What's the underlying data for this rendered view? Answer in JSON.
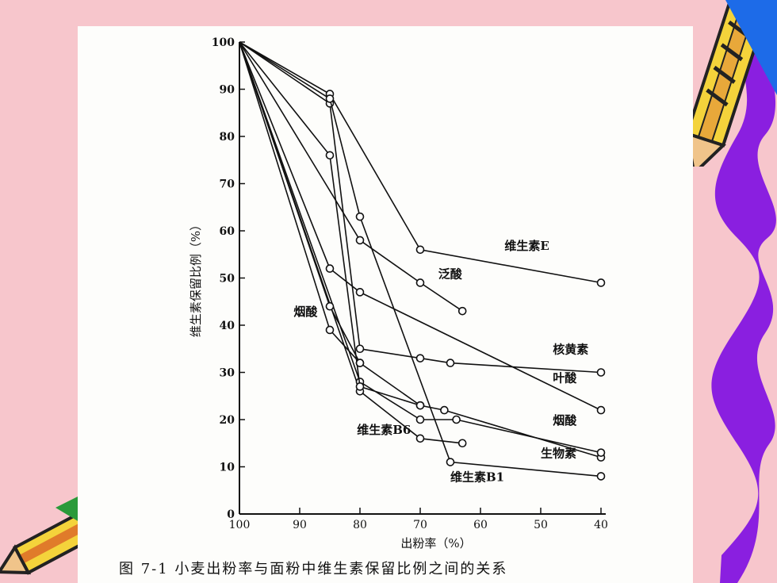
{
  "chart_data": {
    "type": "line",
    "xlabel": "出粉率（%）",
    "ylabel": "维生素保留比例（%）",
    "x_ticks": [
      "100",
      "90",
      "80",
      "70",
      "60",
      "50",
      "40"
    ],
    "y_ticks": [
      "0",
      "10",
      "20",
      "30",
      "40",
      "50",
      "60",
      "70",
      "80",
      "90",
      "100"
    ],
    "xlim": [
      100,
      40
    ],
    "ylim": [
      0,
      100
    ],
    "grid": false,
    "series": [
      {
        "name": "维生素E",
        "x": [
          100,
          85,
          70,
          40
        ],
        "y": [
          100,
          89,
          56,
          49
        ]
      },
      {
        "name": "泛酸",
        "x": [
          100,
          80,
          70,
          63
        ],
        "y": [
          100,
          58,
          49,
          43
        ]
      },
      {
        "name": "核黄素",
        "x": [
          100,
          85,
          80,
          70,
          65,
          40
        ],
        "y": [
          100,
          87,
          35,
          33,
          32,
          30
        ]
      },
      {
        "name": "叶酸",
        "x": [
          100,
          85,
          80,
          40
        ],
        "y": [
          100,
          52,
          47,
          22
        ]
      },
      {
        "name": "烟酸",
        "x": [
          100,
          85,
          80,
          70,
          66,
          40
        ],
        "y": [
          100,
          39,
          32,
          23,
          22,
          12
        ]
      },
      {
        "name": "维生素B6",
        "x": [
          100,
          80,
          70,
          63
        ],
        "y": [
          100,
          26,
          16,
          15
        ]
      },
      {
        "name": "生物素",
        "x": [
          100,
          80,
          70,
          64,
          40
        ],
        "y": [
          100,
          28,
          20,
          20,
          13
        ]
      },
      {
        "name": "维生素B1",
        "x": [
          100,
          85,
          80,
          65,
          40
        ],
        "y": [
          100,
          88,
          63,
          11,
          8
        ]
      },
      {
        "name": "",
        "x": [
          100,
          85,
          80,
          70
        ],
        "y": [
          100,
          76,
          27,
          23
        ]
      },
      {
        "name": "",
        "x": [
          100,
          85,
          80
        ],
        "y": [
          100,
          44,
          32
        ]
      }
    ],
    "annotations": [
      {
        "text": "维生素E",
        "x": 56,
        "y": 56
      },
      {
        "text": "泛酸",
        "x": 67,
        "y": 50
      },
      {
        "text": "烟酸",
        "x": 91,
        "y": 42
      },
      {
        "text": "核黄素",
        "x": 48,
        "y": 34
      },
      {
        "text": "叶酸",
        "x": 48,
        "y": 28
      },
      {
        "text": "烟酸",
        "x": 48,
        "y": 19
      },
      {
        "text": "维生素B6",
        "x": 80.5,
        "y": 17
      },
      {
        "text": "生物素",
        "x": 50,
        "y": 12
      },
      {
        "text": "维生素B1",
        "x": 65,
        "y": 7
      }
    ]
  },
  "caption": "图  7-1   小麦出粉率与面粉中维生素保留比例之间的关系",
  "colors": {
    "background": "#f7c6cc",
    "ribbon": "#8a1fe0",
    "ink": "#111111"
  }
}
